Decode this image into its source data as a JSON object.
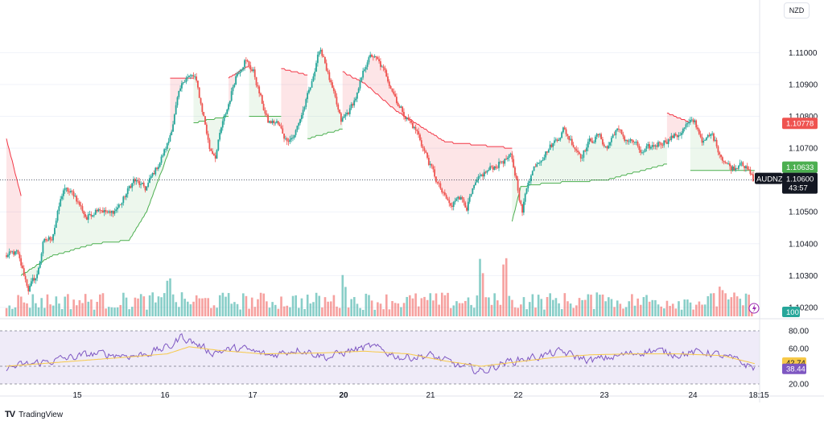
{
  "currency_button": "NZD",
  "brand": {
    "logo": "TV",
    "name": "TradingView"
  },
  "colors": {
    "up": "#26a69a",
    "down": "#ef5350",
    "st_up_line": "#4caf50",
    "st_down_line": "#f23645",
    "st_up_fill": "rgba(76,175,80,0.10)",
    "st_down_fill": "rgba(242,54,69,0.13)",
    "rsi_line": "#7e57c2",
    "rsi_ma": "#f7c948",
    "rsi_band": "rgba(126,87,194,0.12)"
  },
  "chart_data": [
    {
      "type": "candlestick",
      "symbol": "AUDNZD",
      "ylim": [
        1.10172,
        1.11135
      ],
      "y_ticks": [
        "1.11000",
        "1.10900",
        "1.10800",
        "1.10700",
        "1.10600",
        "1.10500",
        "1.10400",
        "1.10300",
        "1.10200"
      ],
      "x_ticks": [
        "15",
        "16",
        "17",
        "20",
        "21",
        "22",
        "23",
        "24",
        "18:15"
      ],
      "last_price": "1.10600",
      "countdown": "43:57",
      "supertrend_down_value": "1.10778",
      "supertrend_up_value": "1.10633",
      "keypoints": [
        [
          0,
          1.1036
        ],
        [
          8,
          1.1037
        ],
        [
          16,
          1.1026
        ],
        [
          22,
          1.103
        ],
        [
          26,
          1.104
        ],
        [
          32,
          1.1042
        ],
        [
          40,
          1.1057
        ],
        [
          48,
          1.1055
        ],
        [
          56,
          1.1048
        ],
        [
          64,
          1.1052
        ],
        [
          72,
          1.1049
        ],
        [
          80,
          1.1053
        ],
        [
          88,
          1.106
        ],
        [
          96,
          1.1057
        ],
        [
          104,
          1.1064
        ],
        [
          112,
          1.1072
        ],
        [
          118,
          1.1085
        ],
        [
          124,
          1.1093
        ],
        [
          130,
          1.1092
        ],
        [
          136,
          1.108
        ],
        [
          140,
          1.107
        ],
        [
          144,
          1.1068
        ],
        [
          148,
          1.1076
        ],
        [
          152,
          1.1082
        ],
        [
          158,
          1.1093
        ],
        [
          164,
          1.1098
        ],
        [
          170,
          1.1094
        ],
        [
          176,
          1.1084
        ],
        [
          180,
          1.1078
        ],
        [
          186,
          1.1078
        ],
        [
          192,
          1.1073
        ],
        [
          198,
          1.1074
        ],
        [
          204,
          1.1082
        ],
        [
          210,
          1.109
        ],
        [
          214,
          1.11
        ],
        [
          218,
          1.1099
        ],
        [
          224,
          1.1088
        ],
        [
          230,
          1.1078
        ],
        [
          236,
          1.1082
        ],
        [
          242,
          1.1088
        ],
        [
          248,
          1.1098
        ],
        [
          252,
          1.1099
        ],
        [
          258,
          1.1095
        ],
        [
          264,
          1.109
        ],
        [
          270,
          1.1083
        ],
        [
          276,
          1.1079
        ],
        [
          282,
          1.1075
        ],
        [
          288,
          1.1068
        ],
        [
          294,
          1.1061
        ],
        [
          300,
          1.1055
        ],
        [
          306,
          1.1051
        ],
        [
          310,
          1.1056
        ],
        [
          316,
          1.1052
        ],
        [
          322,
          1.1058
        ],
        [
          328,
          1.1062
        ],
        [
          334,
          1.1064
        ],
        [
          340,
          1.1066
        ],
        [
          346,
          1.1067
        ],
        [
          350,
          1.106
        ],
        [
          354,
          1.105
        ],
        [
          358,
          1.106
        ],
        [
          364,
          1.1066
        ],
        [
          370,
          1.1069
        ],
        [
          376,
          1.1072
        ],
        [
          382,
          1.1076
        ],
        [
          388,
          1.1072
        ],
        [
          394,
          1.1068
        ],
        [
          400,
          1.1072
        ],
        [
          406,
          1.1074
        ],
        [
          412,
          1.107
        ],
        [
          418,
          1.1076
        ],
        [
          424,
          1.1073
        ],
        [
          430,
          1.1072
        ],
        [
          436,
          1.1068
        ],
        [
          442,
          1.107
        ],
        [
          448,
          1.1072
        ],
        [
          454,
          1.1073
        ],
        [
          460,
          1.1074
        ],
        [
          466,
          1.1077
        ],
        [
          472,
          1.1078
        ],
        [
          478,
          1.1072
        ],
        [
          484,
          1.1074
        ],
        [
          490,
          1.1068
        ],
        [
          496,
          1.1064
        ],
        [
          500,
          1.1064
        ],
        [
          504,
          1.1067
        ],
        [
          508,
          1.1063
        ],
        [
          512,
          1.106
        ]
      ],
      "supertrend_segments": [
        {
          "trend": "down",
          "start": 0,
          "end": 10,
          "levels": [
            [
              0,
              1.1073
            ],
            [
              10,
              1.1055
            ]
          ]
        },
        {
          "trend": "up",
          "start": 10,
          "end": 112,
          "levels": [
            [
              10,
              1.103
            ],
            [
              30,
              1.1036
            ],
            [
              60,
              1.104
            ],
            [
              84,
              1.1041
            ],
            [
              96,
              1.105
            ],
            [
              112,
              1.107
            ]
          ]
        },
        {
          "trend": "down",
          "start": 112,
          "end": 128,
          "levels": [
            [
              112,
              1.1092
            ],
            [
              128,
              1.1092
            ]
          ]
        },
        {
          "trend": "up",
          "start": 128,
          "end": 152,
          "levels": [
            [
              128,
              1.1078
            ],
            [
              152,
              1.108
            ]
          ]
        },
        {
          "trend": "down",
          "start": 152,
          "end": 166,
          "levels": [
            [
              152,
              1.1092
            ],
            [
              166,
              1.1096
            ]
          ]
        },
        {
          "trend": "up",
          "start": 166,
          "end": 188,
          "levels": [
            [
              166,
              1.108
            ],
            [
              188,
              1.108
            ]
          ]
        },
        {
          "trend": "down",
          "start": 188,
          "end": 206,
          "levels": [
            [
              188,
              1.1095
            ],
            [
              206,
              1.1093
            ]
          ]
        },
        {
          "trend": "up",
          "start": 206,
          "end": 230,
          "levels": [
            [
              206,
              1.1073
            ],
            [
              230,
              1.1076
            ]
          ]
        },
        {
          "trend": "down",
          "start": 230,
          "end": 346,
          "levels": [
            [
              230,
              1.1094
            ],
            [
              246,
              1.109
            ],
            [
              266,
              1.1082
            ],
            [
              300,
              1.1072
            ],
            [
              346,
              1.107
            ]
          ]
        },
        {
          "trend": "up",
          "start": 346,
          "end": 452,
          "levels": [
            [
              346,
              1.1047
            ],
            [
              352,
              1.1058
            ],
            [
              370,
              1.1059
            ],
            [
              410,
              1.106
            ],
            [
              452,
              1.1065
            ]
          ]
        },
        {
          "trend": "down",
          "start": 452,
          "end": 468,
          "levels": [
            [
              452,
              1.1081
            ],
            [
              468,
              1.1078
            ]
          ]
        },
        {
          "trend": "up",
          "start": 468,
          "end": 512,
          "levels": [
            [
              468,
              1.1063
            ],
            [
              512,
              1.1063
            ]
          ]
        }
      ],
      "volume_label": "100",
      "rsi": {
        "levels": [
          80,
          60,
          40,
          20
        ],
        "rsi_value": "38.44",
        "ma_value": "42.74",
        "tick_labels": [
          "80.00",
          "60.00",
          "20.00"
        ],
        "keypoints": [
          [
            0,
            38
          ],
          [
            30,
            46
          ],
          [
            60,
            54
          ],
          [
            90,
            52
          ],
          [
            112,
            62
          ],
          [
            120,
            74
          ],
          [
            140,
            56
          ],
          [
            160,
            60
          ],
          [
            180,
            52
          ],
          [
            200,
            60
          ],
          [
            220,
            50
          ],
          [
            236,
            58
          ],
          [
            250,
            62
          ],
          [
            270,
            50
          ],
          [
            290,
            52
          ],
          [
            310,
            40
          ],
          [
            326,
            34
          ],
          [
            340,
            44
          ],
          [
            360,
            50
          ],
          [
            380,
            56
          ],
          [
            400,
            46
          ],
          [
            420,
            52
          ],
          [
            440,
            58
          ],
          [
            460,
            54
          ],
          [
            480,
            56
          ],
          [
            500,
            46
          ],
          [
            512,
            38
          ]
        ],
        "ma_keypoints": [
          [
            0,
            40
          ],
          [
            40,
            45
          ],
          [
            80,
            50
          ],
          [
            110,
            54
          ],
          [
            125,
            62
          ],
          [
            145,
            58
          ],
          [
            175,
            54
          ],
          [
            215,
            55
          ],
          [
            245,
            57
          ],
          [
            275,
            54
          ],
          [
            300,
            46
          ],
          [
            325,
            40
          ],
          [
            345,
            44
          ],
          [
            375,
            50
          ],
          [
            400,
            53
          ],
          [
            430,
            54
          ],
          [
            460,
            54
          ],
          [
            490,
            52
          ],
          [
            512,
            43
          ]
        ]
      }
    }
  ]
}
